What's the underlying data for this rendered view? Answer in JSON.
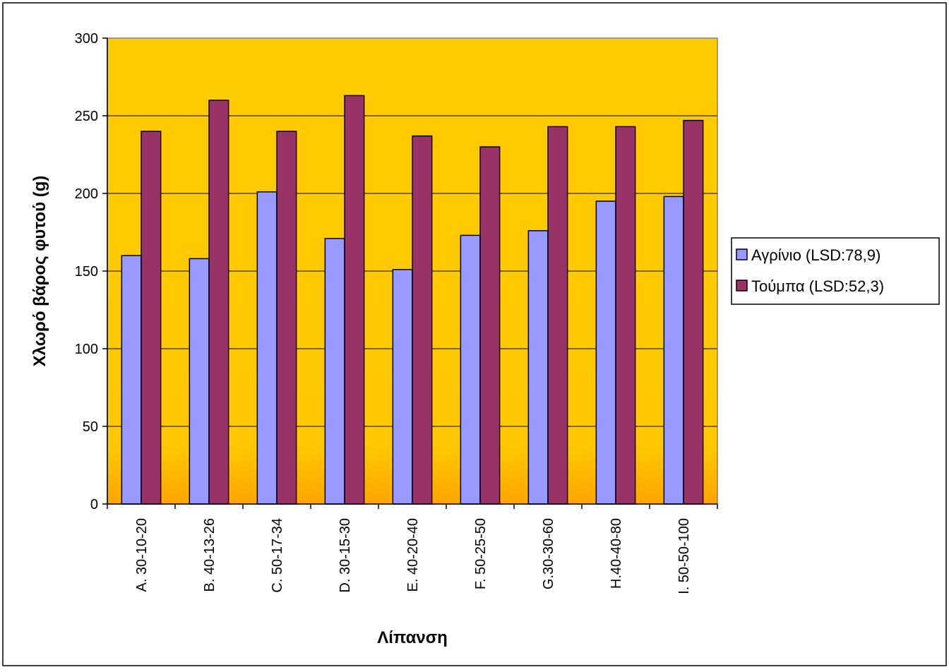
{
  "chart_data": {
    "type": "bar",
    "xlabel": "Λίπανση",
    "ylabel": "Χλωρό βάρος φυτού (g)",
    "ylim": [
      0,
      300
    ],
    "ytick_step": 50,
    "yticks": [
      "0",
      "50",
      "100",
      "150",
      "200",
      "250",
      "300"
    ],
    "grid": true,
    "legend_position": "right",
    "plot_background": "#FFCC00",
    "categories": [
      "A. 30-10-20",
      "B. 40-13-26",
      "C. 50-17-34",
      "D. 30-15-30",
      "E. 40-20-40",
      "F. 50-25-50",
      "G.30-30-60",
      "H.40-40-80",
      "I. 50-50-100"
    ],
    "series": [
      {
        "name": "Αγρίνιο (LSD:78,9)",
        "color": "#9999FF",
        "values": [
          160,
          158,
          201,
          171,
          151,
          173,
          176,
          195,
          198
        ]
      },
      {
        "name": "Τούμπα (LSD:52,3)",
        "color": "#993366",
        "values": [
          240,
          260,
          240,
          263,
          237,
          230,
          243,
          243,
          247
        ]
      }
    ]
  }
}
